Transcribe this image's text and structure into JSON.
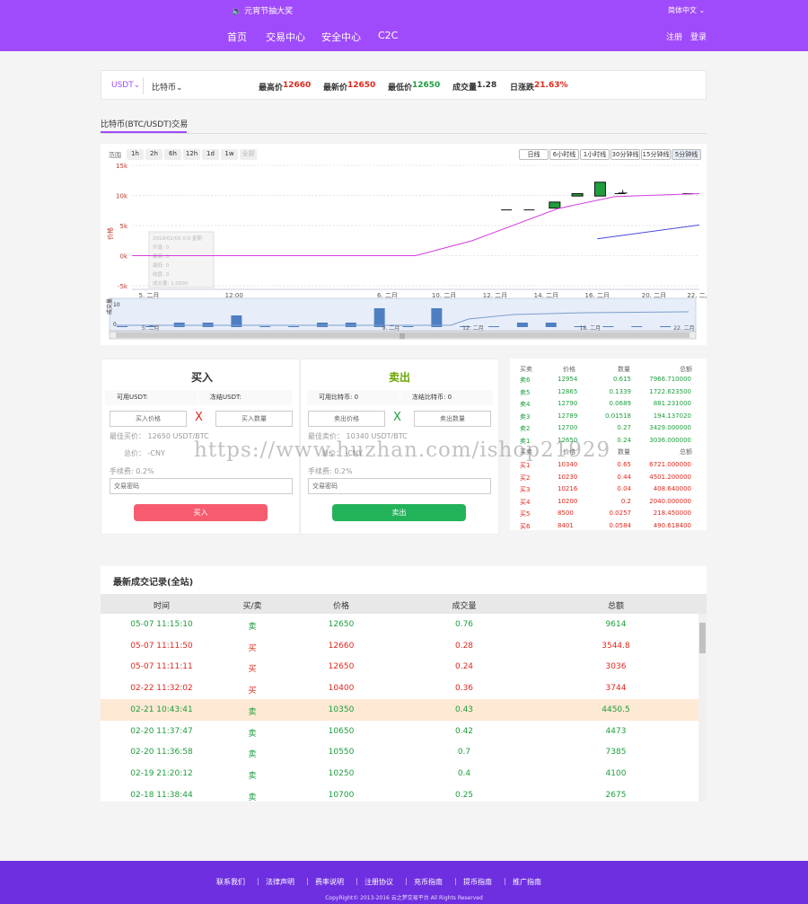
{
  "header": {
    "announcement": "元宵节抽大奖",
    "language": "简体中文",
    "nav": [
      "首页",
      "交易中心",
      "安全中心",
      "C2C"
    ],
    "register": "注册",
    "login": "登录"
  },
  "ticker": {
    "quote_currency": "USDT",
    "base_currency": "比特币",
    "high_label": "最高价",
    "high": "12660",
    "last_label": "最新价",
    "last": "12650",
    "low_label": "最低价",
    "low": "12650",
    "volume_label": "成交量",
    "volume": "1.28",
    "change_label": "日涨跌",
    "change": "21.63%"
  },
  "tab": "比特币(BTC/USDT)交易",
  "chart": {
    "range_label": "范围",
    "ranges": [
      "1h",
      "2h",
      "6h",
      "12h",
      "1d",
      "1w",
      "全部"
    ],
    "intervals": [
      "日线",
      "6小时线",
      "1小时线",
      "30分钟线",
      "15分钟线",
      "5分钟线"
    ],
    "y_ticks": [
      "15k",
      "10k",
      "5k",
      "0k",
      "-5k"
    ],
    "y_label": "价格",
    "x_ticks": [
      "5. 二月",
      "12:00",
      "6. 二月",
      "10. 二月",
      "12. 二月",
      "14. 二月",
      "16. 二月",
      "20. 二月",
      "22. 二月"
    ],
    "nav_ticks": [
      "5. 二月",
      "9. 二月",
      "12. 二月",
      "18. 二月",
      "22. 二月"
    ],
    "nav_y_ticks": [
      "10",
      "0"
    ],
    "nav_y_label": "成交量",
    "tooltip_lines": [
      "2018/02/05 0:0 星期",
      "开盘: 0",
      "最高: 0",
      "最低: 0",
      "收盘: 0",
      "成交量: 1.0000"
    ]
  },
  "chart_data": {
    "type": "candlestick",
    "x_label": "",
    "y_label": "价格",
    "y_range": [
      -5000,
      15000
    ],
    "candles": [
      {
        "date": "02-05",
        "value": 0
      },
      {
        "date": "02-06",
        "value": 0
      },
      {
        "date": "02-12",
        "value": 7600
      },
      {
        "date": "02-13",
        "value": 7600
      },
      {
        "date": "02-14",
        "open": 7900,
        "close": 8900,
        "direction": "up"
      },
      {
        "date": "02-15",
        "open": 9900,
        "close": 10300,
        "direction": "up"
      },
      {
        "date": "02-16",
        "open": 9900,
        "close": 12200,
        "direction": "up"
      },
      {
        "date": "02-17",
        "value": 10400
      },
      {
        "date": "02-22",
        "value": 10300
      }
    ],
    "moving_average_1": [
      [
        0,
        0
      ],
      [
        0.33,
        0
      ],
      [
        0.5,
        0
      ],
      [
        0.6,
        2500
      ],
      [
        0.75,
        7800
      ],
      [
        0.85,
        9800
      ],
      [
        1.0,
        10300
      ]
    ],
    "moving_average_2": [
      [
        0.82,
        2800
      ],
      [
        1.0,
        5100
      ]
    ],
    "volumes": [
      0,
      0,
      1,
      1,
      3,
      0,
      0,
      1,
      1,
      5,
      0,
      5,
      0,
      0,
      1,
      1,
      0,
      0,
      0,
      0
    ]
  },
  "colors": {
    "brand": "#a04bfb",
    "up": "#1e9e3e",
    "down": "#e0281e",
    "buy_button": "#f65c6e",
    "sell_button": "#22b35a",
    "footer": "#6e2fe0"
  },
  "buy": {
    "title": "买入",
    "available": "可用USDT:",
    "frozen": "冻结USDT:",
    "price_placeholder": "买入价格",
    "amount_placeholder": "买入数量",
    "best_price": "最佳买价： 12650 USDT/BTC",
    "total": "总价： -CNY",
    "fee": "手续费: 0.2%",
    "password": "交易密码",
    "button": "买入"
  },
  "sell": {
    "title": "卖出",
    "available": "可用比特币: 0",
    "frozen": "冻结比特币: 0",
    "price_placeholder": "卖出价格",
    "amount_placeholder": "卖出数量",
    "best_price": "最佳卖价： 10340 USDT/BTC",
    "total": "总价： -CNY",
    "fee": "手续费: 0.2%",
    "password": "交易密码",
    "button": "卖出"
  },
  "orderbook": {
    "headers": [
      "买卖",
      "价格",
      "数量",
      "总额"
    ],
    "buy_headers": [
      "买卖",
      "价格",
      "数量",
      "总额"
    ],
    "asks": [
      [
        "卖6",
        "12954",
        "0.615",
        "7966.710000"
      ],
      [
        "卖5",
        "12865",
        "0.1339",
        "1722.623500"
      ],
      [
        "卖4",
        "12790",
        "0.0689",
        "881.231000"
      ],
      [
        "卖3",
        "12789",
        "0.01518",
        "194.137020"
      ],
      [
        "卖2",
        "12700",
        "0.27",
        "3429.000000"
      ],
      [
        "卖1",
        "12650",
        "0.24",
        "3036.000000"
      ]
    ],
    "bids": [
      [
        "买1",
        "10340",
        "0.65",
        "6721.000000"
      ],
      [
        "买2",
        "10230",
        "0.44",
        "4501.200000"
      ],
      [
        "买3",
        "10216",
        "0.04",
        "408.640000"
      ],
      [
        "买4",
        "10200",
        "0.2",
        "2040.000000"
      ],
      [
        "买5",
        "8500",
        "0.0257",
        "218.450000"
      ],
      [
        "买6",
        "8401",
        "0.0584",
        "490.618400"
      ]
    ]
  },
  "history": {
    "title": "最新成交记录(全站)",
    "headers": [
      "时间",
      "买/卖",
      "价格",
      "成交量",
      "总额"
    ],
    "rows": [
      [
        "05-07 11:15:10",
        "卖",
        "12650",
        "0.76",
        "9614",
        "g"
      ],
      [
        "05-07 11:11:50",
        "买",
        "12660",
        "0.28",
        "3544.8",
        "r"
      ],
      [
        "05-07 11:11:11",
        "买",
        "12650",
        "0.24",
        "3036",
        "r"
      ],
      [
        "02-22 11:32:02",
        "买",
        "10400",
        "0.36",
        "3744",
        "r"
      ],
      [
        "02-21 10:43:41",
        "卖",
        "10350",
        "0.43",
        "4450.5",
        "g"
      ],
      [
        "02-20 11:37:47",
        "卖",
        "10650",
        "0.42",
        "4473",
        "g"
      ],
      [
        "02-20 11:36:58",
        "卖",
        "10550",
        "0.7",
        "7385",
        "g"
      ],
      [
        "02-19 21:20:12",
        "卖",
        "10250",
        "0.4",
        "4100",
        "g"
      ],
      [
        "02-18 11:38:44",
        "卖",
        "10700",
        "0.25",
        "2675",
        "g"
      ]
    ]
  },
  "footer": {
    "links": [
      "联系我们",
      "法律声明",
      "费率说明",
      "注册协议",
      "充币指南",
      "提币指南",
      "推广指南"
    ],
    "copyright": "CopyRight© 2013-2016 云之梦交易平台 All Rights Reserved"
  },
  "watermark": "https://www.huzhan.com/ishop21929"
}
